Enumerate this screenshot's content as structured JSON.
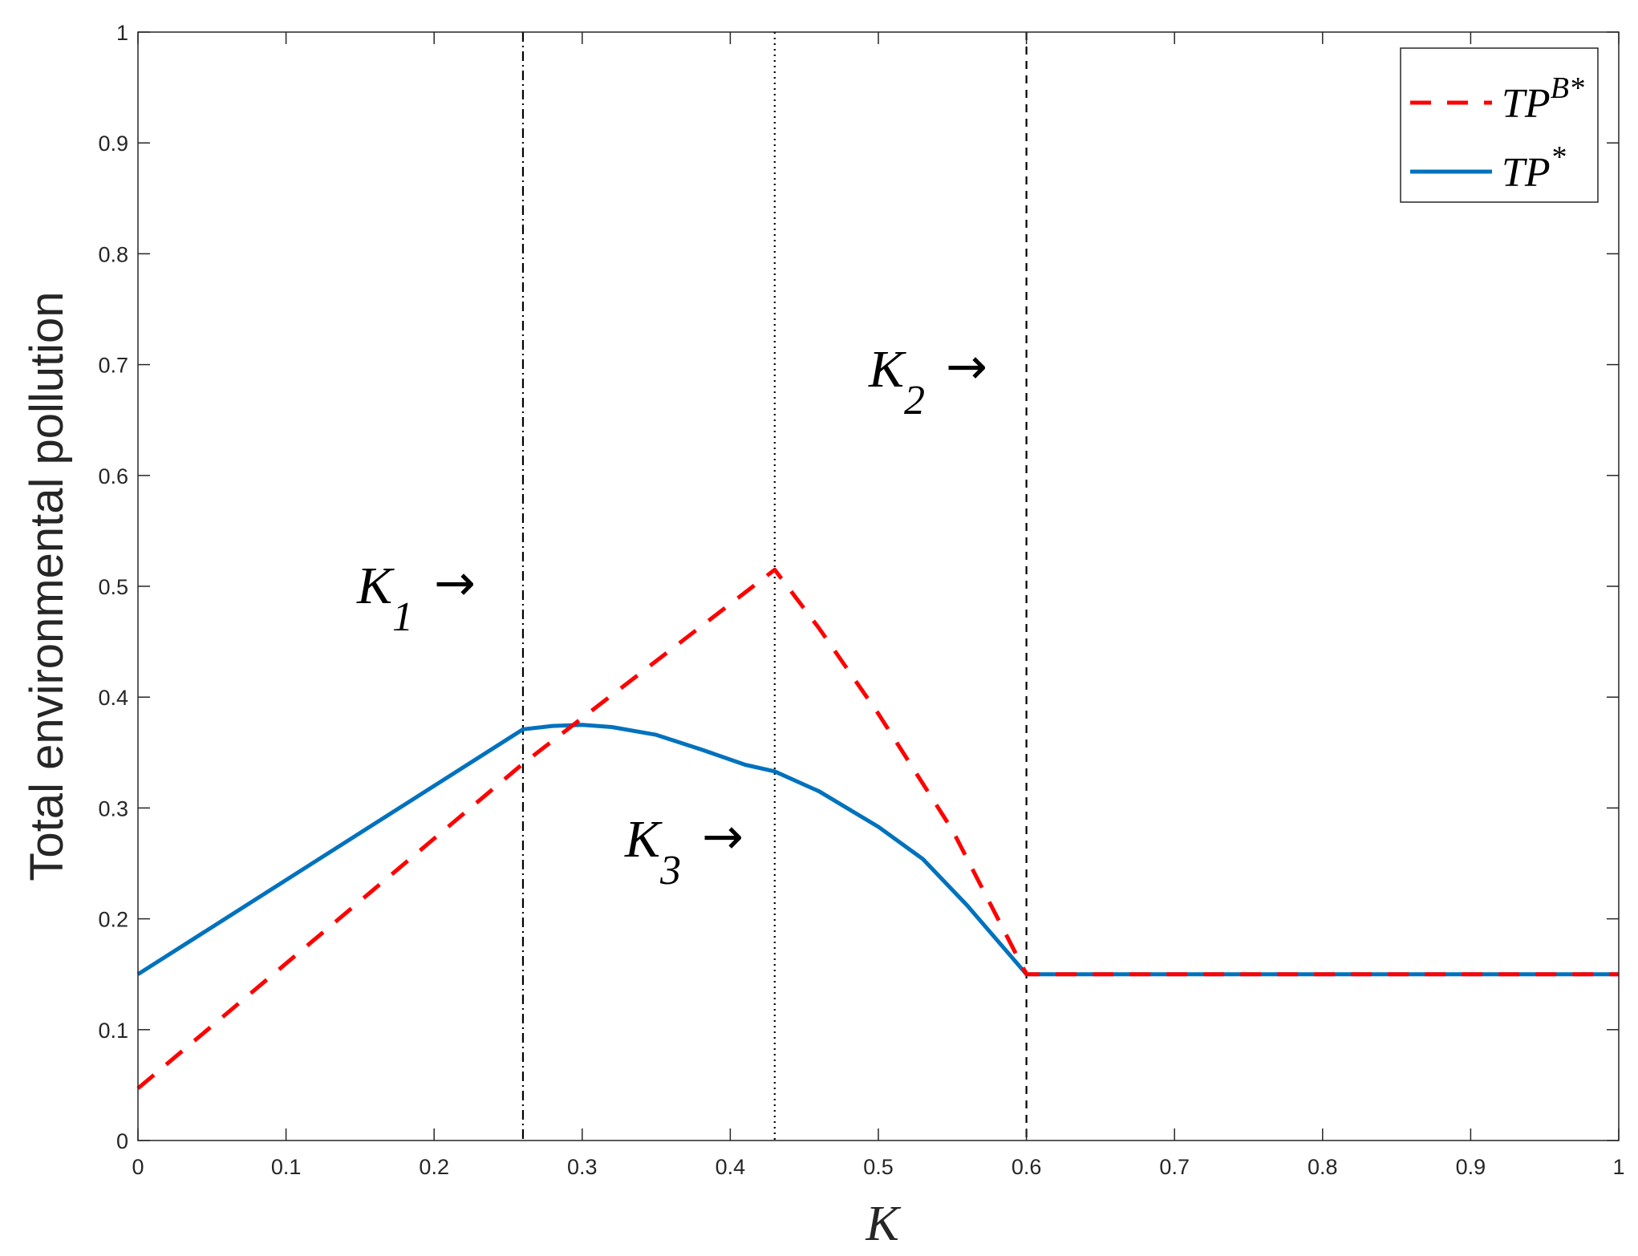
{
  "chart_data": {
    "type": "line",
    "title": "",
    "xlabel": "K",
    "ylabel": "Total environmental pollution",
    "xlim": [
      0,
      1
    ],
    "ylim": [
      0,
      1
    ],
    "x_ticks": [
      "0",
      "0.1",
      "0.2",
      "0.3",
      "0.4",
      "0.5",
      "0.6",
      "0.7",
      "0.8",
      "0.9",
      "1"
    ],
    "y_ticks": [
      "0",
      "0.1",
      "0.2",
      "0.3",
      "0.4",
      "0.5",
      "0.6",
      "0.7",
      "0.8",
      "0.9",
      "1"
    ],
    "grid": false,
    "legend_position": "top-right",
    "series": [
      {
        "name": "TP^{B*}",
        "legend_base": "TP",
        "legend_sup": "B*",
        "color": "#ff0000",
        "style": "dashed",
        "x": [
          0,
          0.26,
          0.43,
          0.46,
          0.5,
          0.55,
          0.6,
          0.7,
          0.8,
          0.9,
          1
        ],
        "y": [
          0.047,
          0.34,
          0.515,
          0.462,
          0.385,
          0.28,
          0.15,
          0.15,
          0.15,
          0.15,
          0.15
        ]
      },
      {
        "name": "TP^{*}",
        "legend_base": "TP",
        "legend_sup": "*",
        "color": "#0072bd",
        "style": "solid",
        "x": [
          0,
          0.26,
          0.28,
          0.3,
          0.32,
          0.35,
          0.38,
          0.41,
          0.43,
          0.46,
          0.5,
          0.53,
          0.56,
          0.6,
          0.7,
          0.8,
          0.9,
          1
        ],
        "y": [
          0.15,
          0.371,
          0.374,
          0.375,
          0.373,
          0.366,
          0.353,
          0.339,
          0.333,
          0.315,
          0.283,
          0.254,
          0.212,
          0.15,
          0.15,
          0.15,
          0.15,
          0.15
        ]
      }
    ],
    "reference_lines": [
      {
        "x": 0.26,
        "style": "dashdot",
        "label": "K",
        "sub": "1"
      },
      {
        "x": 0.43,
        "style": "dotted",
        "label": "K",
        "sub": "3"
      },
      {
        "x": 0.6,
        "style": "dashed",
        "label": "K",
        "sub": "2"
      }
    ],
    "arrow_glyph": "→"
  }
}
